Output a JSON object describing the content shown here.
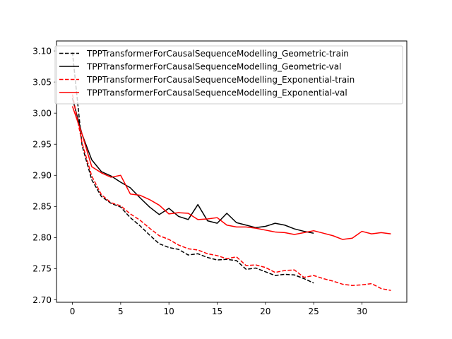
{
  "chart_data": {
    "type": "line",
    "title": "",
    "xlabel": "",
    "ylabel": "",
    "xlim": [
      -1.65,
      34.65
    ],
    "ylim": [
      2.696,
      3.116
    ],
    "xticks": [
      0,
      5,
      10,
      15,
      20,
      25,
      30
    ],
    "yticks": [
      2.7,
      2.75,
      2.8,
      2.85,
      2.9,
      2.95,
      3.0,
      3.05,
      3.1
    ],
    "ytick_labels": [
      "2.70",
      "2.75",
      "2.80",
      "2.85",
      "2.90",
      "2.95",
      "3.00",
      "3.05",
      "3.10"
    ],
    "grid": false,
    "legend_placement": "upper right",
    "series": [
      {
        "name": "TPPTransformerForCausalSequenceModelling_Geometric-train",
        "color": "#000000",
        "dash": "dashed",
        "x": [
          0,
          1,
          2,
          3,
          4,
          5,
          6,
          7,
          8,
          9,
          10,
          11,
          12,
          13,
          14,
          15,
          16,
          17,
          18,
          19,
          20,
          21,
          22,
          23,
          24,
          25
        ],
        "y": [
          3.098,
          2.948,
          2.893,
          2.866,
          2.855,
          2.849,
          2.832,
          2.819,
          2.804,
          2.79,
          2.784,
          2.781,
          2.772,
          2.774,
          2.768,
          2.764,
          2.765,
          2.763,
          2.749,
          2.751,
          2.745,
          2.739,
          2.741,
          2.74,
          2.734,
          2.727
        ]
      },
      {
        "name": "TPPTransformerForCausalSequenceModelling_Geometric-val",
        "color": "#000000",
        "dash": "solid",
        "x": [
          0,
          1,
          2,
          3,
          4,
          5,
          6,
          7,
          8,
          9,
          10,
          11,
          12,
          13,
          14,
          15,
          16,
          17,
          18,
          19,
          20,
          21,
          22,
          23,
          24,
          25
        ],
        "y": [
          3.024,
          2.966,
          2.925,
          2.906,
          2.899,
          2.889,
          2.88,
          2.864,
          2.849,
          2.837,
          2.847,
          2.834,
          2.829,
          2.853,
          2.827,
          2.823,
          2.839,
          2.824,
          2.82,
          2.816,
          2.818,
          2.823,
          2.82,
          2.814,
          2.81,
          2.807
        ]
      },
      {
        "name": "TPPTransformerForCausalSequenceModelling_Exponential-train",
        "color": "#ff0000",
        "dash": "dashed",
        "x": [
          0,
          1,
          2,
          3,
          4,
          5,
          6,
          7,
          8,
          9,
          10,
          11,
          12,
          13,
          14,
          15,
          16,
          17,
          18,
          19,
          20,
          21,
          22,
          23,
          24,
          25,
          26,
          27,
          28,
          29,
          30,
          31,
          32,
          33
        ],
        "y": [
          3.03,
          2.952,
          2.899,
          2.869,
          2.856,
          2.851,
          2.838,
          2.828,
          2.815,
          2.803,
          2.797,
          2.788,
          2.782,
          2.78,
          2.774,
          2.771,
          2.766,
          2.769,
          2.755,
          2.756,
          2.752,
          2.744,
          2.747,
          2.748,
          2.736,
          2.739,
          2.734,
          2.73,
          2.725,
          2.723,
          2.724,
          2.726,
          2.718,
          2.715
        ]
      },
      {
        "name": "TPPTransformerForCausalSequenceModelling_Exponential-val",
        "color": "#ff0000",
        "dash": "solid",
        "x": [
          0,
          1,
          2,
          3,
          4,
          5,
          6,
          7,
          8,
          9,
          10,
          11,
          12,
          13,
          14,
          15,
          16,
          17,
          18,
          19,
          20,
          21,
          22,
          23,
          24,
          25,
          26,
          27,
          28,
          29,
          30,
          31,
          32,
          33
        ],
        "y": [
          3.011,
          2.966,
          2.914,
          2.904,
          2.897,
          2.9,
          2.87,
          2.868,
          2.861,
          2.852,
          2.838,
          2.84,
          2.839,
          2.829,
          2.83,
          2.832,
          2.82,
          2.817,
          2.817,
          2.815,
          2.812,
          2.809,
          2.808,
          2.805,
          2.808,
          2.811,
          2.807,
          2.803,
          2.797,
          2.799,
          2.81,
          2.806,
          2.808,
          2.806
        ]
      }
    ]
  }
}
